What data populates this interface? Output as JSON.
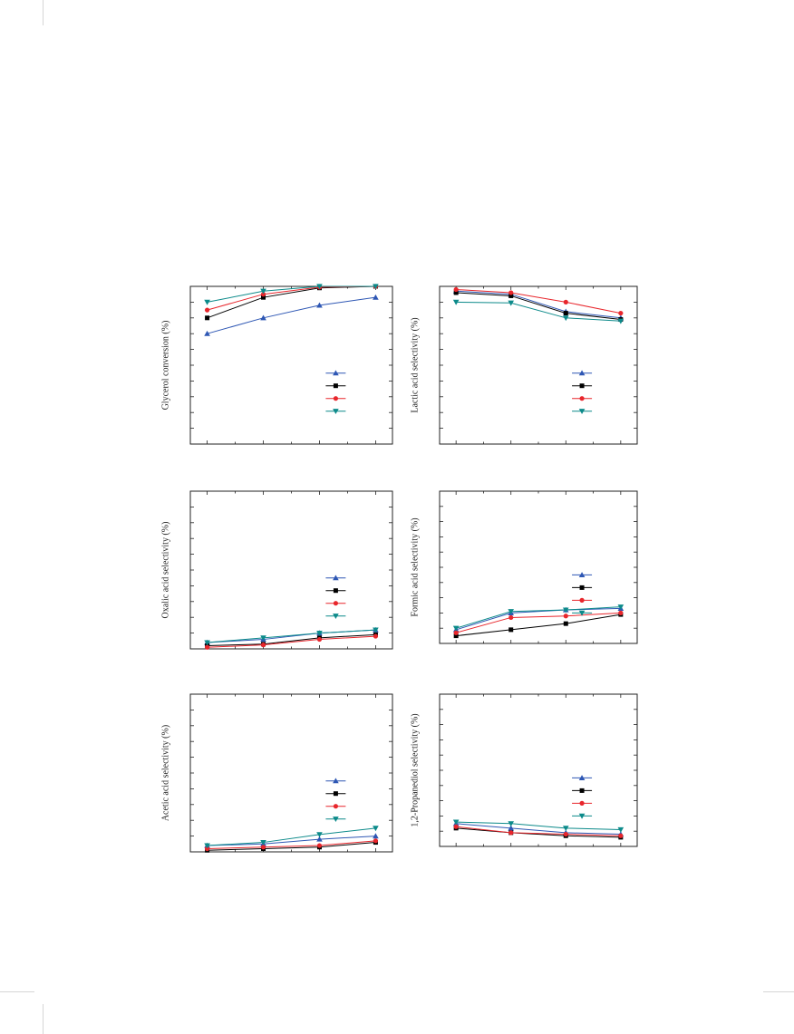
{
  "page": {
    "crop_marks": true
  },
  "panels": [
    {
      "id": "glycerol",
      "ylabel": "Glycerol conversion (%)"
    },
    {
      "id": "lactic",
      "ylabel": "Lactic acid selectivity (%)"
    },
    {
      "id": "oxalic",
      "ylabel": "Oxalic acid selectivity (%)"
    },
    {
      "id": "formic",
      "ylabel": "Formic acid selectivity (%)"
    },
    {
      "id": "acetic",
      "ylabel": "Acetic acid selectivity (%)"
    },
    {
      "id": "propanediol",
      "ylabel": "1,2-Propanediol selectivity (%)"
    }
  ],
  "chart_data": [
    {
      "type": "line",
      "ylabel": "Glycerol conversion (%)",
      "xlabel": "",
      "x": [
        1,
        2,
        3,
        4
      ],
      "xlim": [
        0.7,
        4.3
      ],
      "ylim": [
        0,
        100
      ],
      "legend": "right",
      "series": [
        {
          "color": "#2e57b4",
          "marker": "triangle-up",
          "values": [
            70,
            80,
            88,
            93
          ]
        },
        {
          "color": "#000000",
          "marker": "square",
          "values": [
            80,
            93,
            99,
            100
          ]
        },
        {
          "color": "#e8262c",
          "marker": "circle",
          "values": [
            85,
            95,
            99.5,
            100
          ]
        },
        {
          "color": "#0c8a8a",
          "marker": "triangle-down",
          "values": [
            90,
            97,
            100,
            100
          ]
        }
      ]
    },
    {
      "type": "line",
      "ylabel": "Lactic acid selectivity (%)",
      "xlabel": "",
      "x": [
        1,
        2,
        3,
        4
      ],
      "xlim": [
        0.7,
        4.3
      ],
      "ylim": [
        0,
        100
      ],
      "legend": "right",
      "series": [
        {
          "color": "#2e57b4",
          "marker": "triangle-up",
          "values": [
            97,
            95,
            84,
            80
          ]
        },
        {
          "color": "#000000",
          "marker": "square",
          "values": [
            96,
            94,
            83,
            79
          ]
        },
        {
          "color": "#e8262c",
          "marker": "circle",
          "values": [
            98,
            96,
            90,
            83
          ]
        },
        {
          "color": "#0c8a8a",
          "marker": "triangle-down",
          "values": [
            90,
            89.5,
            80,
            78
          ]
        }
      ]
    },
    {
      "type": "line",
      "ylabel": "Oxalic acid selectivity (%)",
      "xlabel": "",
      "x": [
        1,
        2,
        3,
        4
      ],
      "xlim": [
        0.7,
        4.3
      ],
      "ylim": [
        0,
        100
      ],
      "legend": "right",
      "series": [
        {
          "color": "#2e57b4",
          "marker": "triangle-up",
          "values": [
            4,
            6,
            10,
            12
          ]
        },
        {
          "color": "#000000",
          "marker": "square",
          "values": [
            2,
            3,
            7,
            9
          ]
        },
        {
          "color": "#e8262c",
          "marker": "circle",
          "values": [
            1,
            2.5,
            6,
            8
          ]
        },
        {
          "color": "#0c8a8a",
          "marker": "triangle-down",
          "values": [
            4,
            7,
            10,
            12
          ]
        }
      ]
    },
    {
      "type": "line",
      "ylabel": "Formic acid selectivity (%)",
      "xlabel": "",
      "x": [
        1,
        2,
        3,
        4
      ],
      "xlim": [
        0.7,
        4.3
      ],
      "ylim": [
        0,
        100
      ],
      "legend": "right",
      "series": [
        {
          "color": "#2e57b4",
          "marker": "triangle-up",
          "values": [
            9,
            20,
            22,
            23
          ]
        },
        {
          "color": "#000000",
          "marker": "square",
          "values": [
            5,
            9,
            13,
            19
          ]
        },
        {
          "color": "#e8262c",
          "marker": "circle",
          "values": [
            7,
            17,
            18,
            20
          ]
        },
        {
          "color": "#0c8a8a",
          "marker": "triangle-down",
          "values": [
            10,
            21,
            22,
            24
          ]
        }
      ]
    },
    {
      "type": "line",
      "ylabel": "Acetic acid selectivity (%)",
      "xlabel": "",
      "x": [
        1,
        2,
        3,
        4
      ],
      "xlim": [
        0.7,
        4.3
      ],
      "ylim": [
        0,
        100
      ],
      "legend": "right",
      "series": [
        {
          "color": "#2e57b4",
          "marker": "triangle-up",
          "values": [
            4,
            5,
            8,
            10
          ]
        },
        {
          "color": "#000000",
          "marker": "square",
          "values": [
            1,
            2,
            3,
            6
          ]
        },
        {
          "color": "#e8262c",
          "marker": "circle",
          "values": [
            2,
            3,
            4,
            7
          ]
        },
        {
          "color": "#0c8a8a",
          "marker": "triangle-down",
          "values": [
            4,
            6,
            11,
            15
          ]
        }
      ]
    },
    {
      "type": "line",
      "ylabel": "1,2-Propanediol selectivity (%)",
      "xlabel": "",
      "x": [
        1,
        2,
        3,
        4
      ],
      "xlim": [
        0.7,
        4.3
      ],
      "ylim": [
        0,
        100
      ],
      "legend": "right",
      "series": [
        {
          "color": "#2e57b4",
          "marker": "triangle-up",
          "values": [
            15,
            12,
            9,
            8
          ]
        },
        {
          "color": "#000000",
          "marker": "square",
          "values": [
            12,
            9,
            7,
            6
          ]
        },
        {
          "color": "#e8262c",
          "marker": "circle",
          "values": [
            13,
            9,
            8,
            7
          ]
        },
        {
          "color": "#0c8a8a",
          "marker": "triangle-down",
          "values": [
            16,
            15,
            12,
            11
          ]
        }
      ]
    }
  ]
}
